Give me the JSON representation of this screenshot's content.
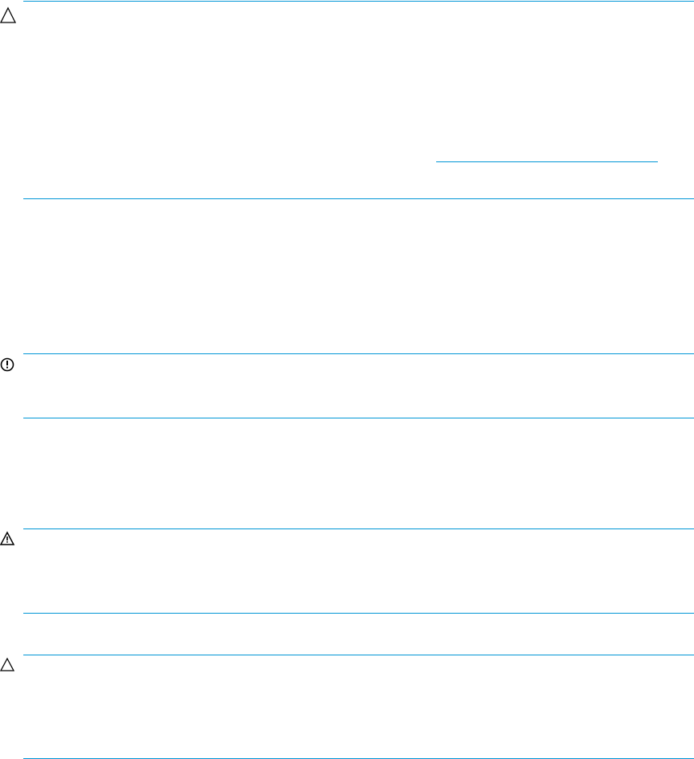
{
  "colors": {
    "rule": "#0096d6",
    "icon": "#000000"
  },
  "notices": [
    {
      "icon": "caution-triangle-icon"
    },
    {
      "icon": "important-exclamation-icon"
    },
    {
      "icon": "warning-triangle-icon"
    },
    {
      "icon": "caution-triangle-icon"
    }
  ]
}
